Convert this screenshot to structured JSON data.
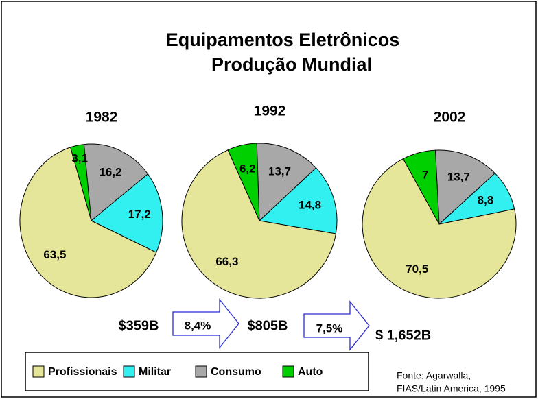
{
  "header": {
    "title": [
      "Equipamentos Eletrônicos",
      "Produção Mundial"
    ]
  },
  "legend": {
    "categories": [
      "Profissionais",
      "Militar",
      "Consumo",
      "Auto"
    ],
    "colors": [
      "#e6e69a",
      "#33f0f0",
      "#a8a8a8",
      "#00d000"
    ]
  },
  "chart_data": [
    {
      "type": "pie",
      "title": "1982",
      "values": [
        63.5,
        17.2,
        16.2,
        3.1
      ],
      "value_labels": [
        "63,5",
        "17,2",
        "16,2",
        "3,1"
      ]
    },
    {
      "type": "pie",
      "title": "1992",
      "values": [
        66.3,
        14.8,
        13.7,
        6.2
      ],
      "value_labels": [
        "66,3",
        "14,8",
        "13,7",
        "6,2"
      ]
    },
    {
      "type": "pie",
      "title": "2002",
      "values": [
        70.5,
        8.8,
        13.7,
        7
      ],
      "value_labels": [
        "70,5",
        "8,8",
        "13,7",
        "7"
      ]
    }
  ],
  "totals": [
    "$359B",
    "$805B",
    "$ 1,652B"
  ],
  "growth": [
    "8,4%",
    "7,5%"
  ],
  "source": [
    "Fonte: Agarwalla,",
    "FIAS/Latin America, 1995"
  ]
}
